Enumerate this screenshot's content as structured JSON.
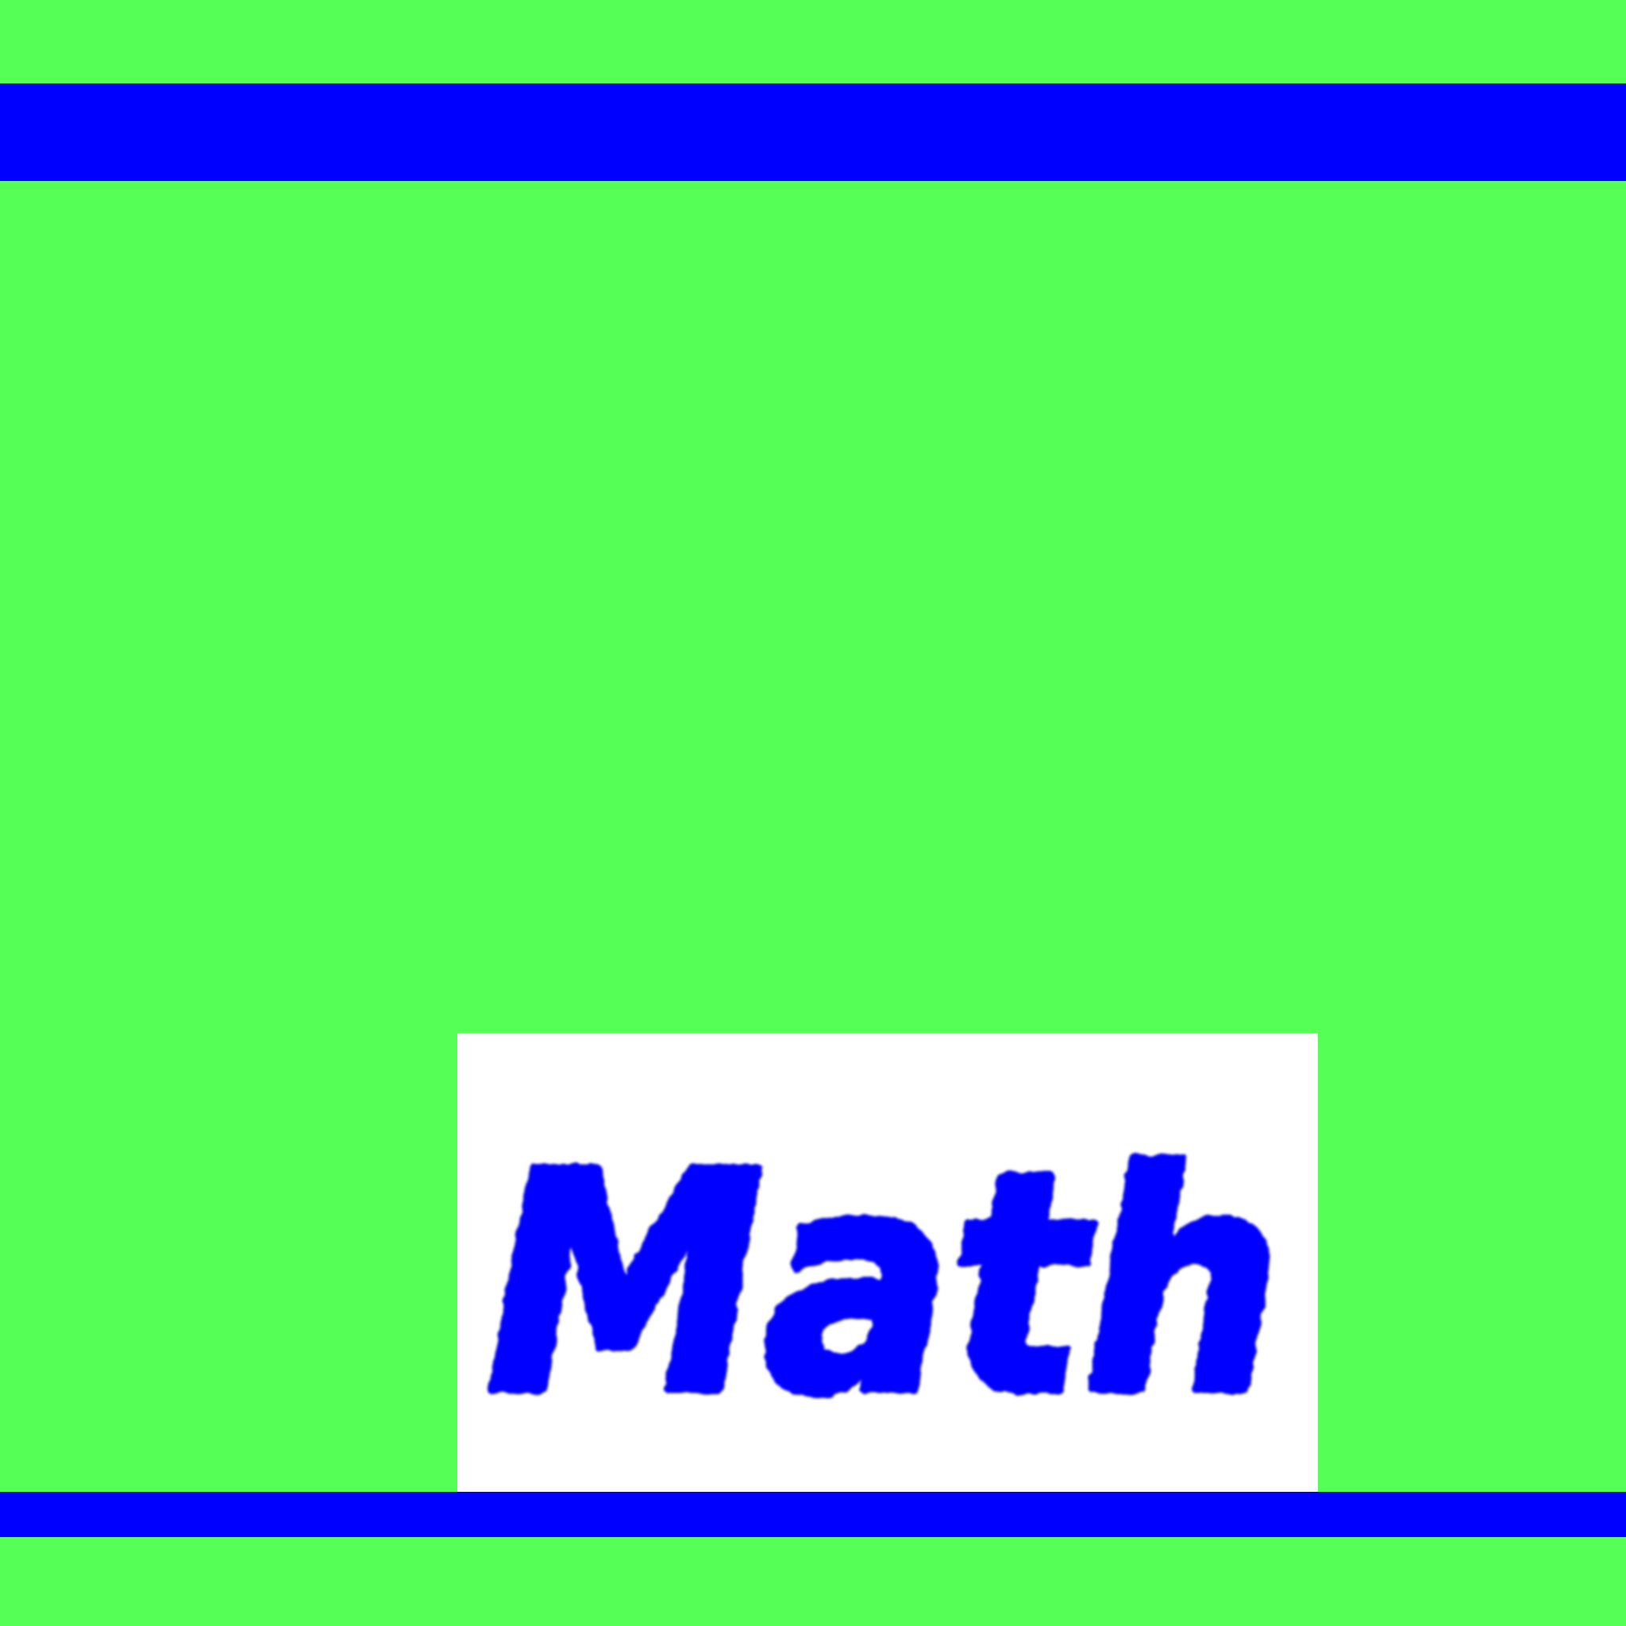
{
  "colors": {
    "background": "#55ff55",
    "stripe": "#0000ff",
    "card": "#ffffff",
    "text": "#0000ff"
  },
  "label": {
    "text": "Math"
  }
}
